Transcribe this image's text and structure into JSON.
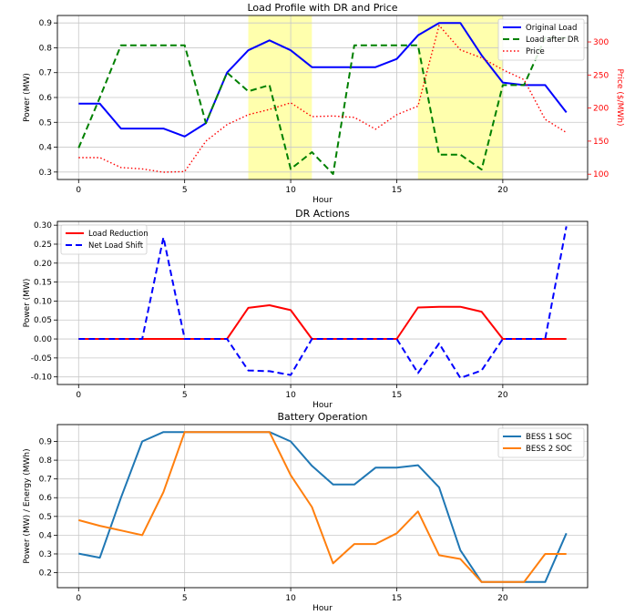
{
  "chart_data": [
    {
      "type": "line",
      "title": "Load Profile with DR and Price",
      "xlabel": "Hour",
      "ylabel": "Power (MW)",
      "y2label": "Price ($/MWh)",
      "xlim": [
        -1,
        24
      ],
      "ylim": [
        0.27,
        0.93
      ],
      "y2lim": [
        92,
        340
      ],
      "xticks": [
        0,
        5,
        10,
        15,
        20
      ],
      "yticks": [
        0.3,
        0.4,
        0.5,
        0.6,
        0.7,
        0.8,
        0.9
      ],
      "y2ticks": [
        100,
        150,
        200,
        250,
        300
      ],
      "grid": true,
      "legend_position": "top-right",
      "shaded_hours": [
        [
          8,
          11
        ],
        [
          16,
          20
        ]
      ],
      "shade_color": "#ffff99",
      "series": [
        {
          "name": "Original Load",
          "axis": "left",
          "color": "#0000ff",
          "style": "solid",
          "x": [
            0,
            1,
            2,
            3,
            4,
            5,
            6,
            7,
            8,
            9,
            10,
            11,
            12,
            13,
            14,
            15,
            16,
            17,
            18,
            19,
            20,
            21,
            22,
            23
          ],
          "values": [
            0.575,
            0.575,
            0.475,
            0.475,
            0.475,
            0.443,
            0.497,
            0.7,
            0.79,
            0.83,
            0.79,
            0.722,
            0.722,
            0.722,
            0.722,
            0.755,
            0.85,
            0.9,
            0.9,
            0.77,
            0.66,
            0.65,
            0.65,
            0.54
          ]
        },
        {
          "name": "Load after DR",
          "axis": "left",
          "color": "#008000",
          "style": "dashed",
          "x": [
            0,
            1,
            2,
            3,
            4,
            5,
            6,
            7,
            8,
            9,
            10,
            11,
            12,
            13,
            14,
            15,
            16,
            17,
            18,
            19,
            20,
            21,
            22,
            23
          ],
          "values": [
            0.397,
            0.6,
            0.81,
            0.81,
            0.81,
            0.81,
            0.497,
            0.7,
            0.625,
            0.65,
            0.312,
            0.38,
            0.292,
            0.81,
            0.81,
            0.81,
            0.81,
            0.37,
            0.37,
            0.31,
            0.65,
            0.65,
            0.84,
            0.84
          ]
        },
        {
          "name": "Price",
          "axis": "right",
          "color": "#ff0000",
          "style": "dotted",
          "x": [
            0,
            1,
            2,
            3,
            4,
            5,
            6,
            7,
            8,
            9,
            10,
            11,
            12,
            13,
            14,
            15,
            16,
            17,
            18,
            19,
            20,
            21,
            22,
            23
          ],
          "values": [
            125,
            125,
            110,
            108,
            103,
            104,
            150,
            175,
            190,
            198,
            208,
            187,
            188,
            186,
            168,
            190,
            203,
            325,
            288,
            276,
            258,
            243,
            183,
            163
          ]
        }
      ]
    },
    {
      "type": "line",
      "title": "DR Actions",
      "xlabel": "Hour",
      "ylabel": "Power (MW)",
      "xlim": [
        -1,
        24
      ],
      "ylim": [
        -0.12,
        0.31
      ],
      "xticks": [
        0,
        5,
        10,
        15,
        20
      ],
      "yticks": [
        -0.1,
        -0.05,
        0.0,
        0.05,
        0.1,
        0.15,
        0.2,
        0.25,
        0.3
      ],
      "grid": true,
      "legend_position": "top-left",
      "series": [
        {
          "name": "Load Reduction",
          "color": "#ff0000",
          "style": "solid",
          "x": [
            0,
            1,
            2,
            3,
            4,
            5,
            6,
            7,
            8,
            9,
            10,
            11,
            12,
            13,
            14,
            15,
            16,
            17,
            18,
            19,
            20,
            21,
            22,
            23
          ],
          "values": [
            0,
            0,
            0,
            0,
            0,
            0,
            0,
            0,
            0.082,
            0.089,
            0.076,
            0,
            0,
            0,
            0,
            0,
            0.083,
            0.085,
            0.085,
            0.072,
            0,
            0,
            0,
            0
          ]
        },
        {
          "name": "Net Load Shift",
          "color": "#0000ff",
          "style": "dashed",
          "x": [
            0,
            1,
            2,
            3,
            4,
            5,
            6,
            7,
            8,
            9,
            10,
            11,
            12,
            13,
            14,
            15,
            16,
            17,
            18,
            19,
            20,
            21,
            22,
            23
          ],
          "values": [
            0,
            0,
            0,
            0,
            0.268,
            0,
            0,
            0,
            -0.083,
            -0.085,
            -0.095,
            0,
            0,
            0,
            0,
            0,
            -0.09,
            -0.012,
            -0.103,
            -0.083,
            0,
            0,
            0,
            0.297
          ]
        }
      ]
    },
    {
      "type": "line",
      "title": "Battery Operation",
      "xlabel": "Hour",
      "ylabel": "Power (MW) / Energy (MWh)",
      "xlim": [
        -1,
        24
      ],
      "ylim": [
        0.12,
        0.99
      ],
      "xticks": [
        0,
        5,
        10,
        15,
        20
      ],
      "yticks": [
        0.2,
        0.3,
        0.4,
        0.5,
        0.6,
        0.7,
        0.8,
        0.9
      ],
      "grid": true,
      "legend_position": "top-right",
      "series": [
        {
          "name": "BESS 1 SOC",
          "color": "#1f77b4",
          "style": "solid",
          "x": [
            0,
            1,
            2,
            3,
            4,
            5,
            6,
            7,
            8,
            9,
            10,
            11,
            12,
            13,
            14,
            15,
            16,
            17,
            18,
            19,
            20,
            21,
            22,
            23
          ],
          "values": [
            0.302,
            0.28,
            0.6,
            0.9,
            0.95,
            0.95,
            0.95,
            0.95,
            0.95,
            0.95,
            0.9,
            0.77,
            0.67,
            0.67,
            0.76,
            0.76,
            0.773,
            0.655,
            0.32,
            0.15,
            0.15,
            0.15,
            0.15,
            0.41
          ]
        },
        {
          "name": "BESS 2 SOC",
          "color": "#ff7f0e",
          "style": "solid",
          "x": [
            0,
            1,
            2,
            3,
            4,
            5,
            6,
            7,
            8,
            9,
            10,
            11,
            12,
            13,
            14,
            15,
            16,
            17,
            18,
            19,
            20,
            21,
            22,
            23
          ],
          "values": [
            0.48,
            0.45,
            0.425,
            0.4,
            0.63,
            0.95,
            0.95,
            0.95,
            0.95,
            0.95,
            0.72,
            0.55,
            0.25,
            0.353,
            0.353,
            0.41,
            0.527,
            0.293,
            0.273,
            0.15,
            0.15,
            0.15,
            0.3,
            0.3
          ]
        }
      ]
    }
  ]
}
